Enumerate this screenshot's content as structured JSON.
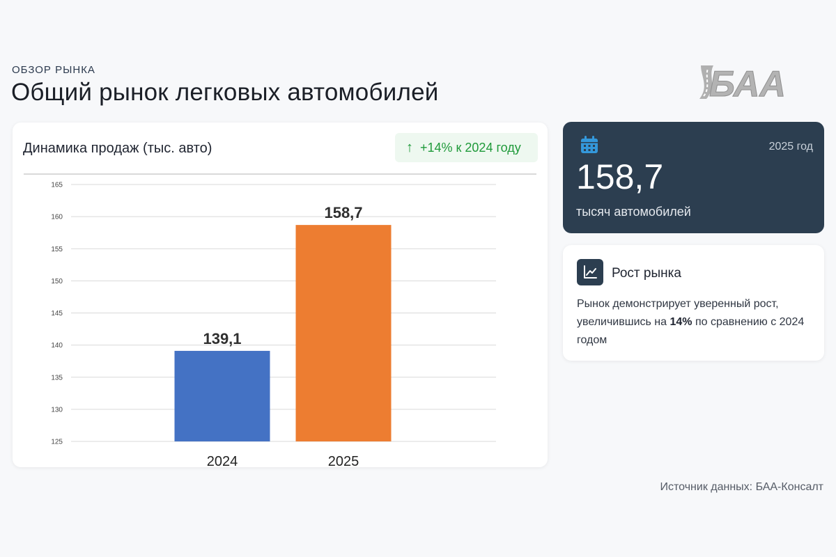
{
  "header": {
    "eyebrow": "ОБЗОР РЫНКА",
    "title": "Общий рынок легковых автомобилей"
  },
  "logo": {
    "text": "БАА",
    "color": "#b3b3b3"
  },
  "chart_card": {
    "title": "Динамика продаж (тыс. авто)",
    "badge_arrow": "↑",
    "badge_text": "+14% к 2024 году",
    "badge_color": "#1f9a3a"
  },
  "chart_data": {
    "type": "bar",
    "categories": [
      "2024",
      "2025"
    ],
    "values": [
      139.1,
      158.7
    ],
    "value_labels": [
      "139,1",
      "158,7"
    ],
    "colors": [
      "#4472c4",
      "#ed7d31"
    ],
    "title": "Динамика продаж (тыс. авто)",
    "xlabel": "",
    "ylabel": "",
    "ylim": [
      125,
      165
    ],
    "yticks": [
      125,
      130,
      135,
      140,
      145,
      150,
      155,
      160,
      165
    ],
    "grid": true,
    "legend": "none"
  },
  "kpi": {
    "year": "2025 год",
    "value": "158,7",
    "unit": "тысяч автомобилей",
    "icon": "calendar-icon",
    "icon_color": "#3498db",
    "background": "#2c3e50"
  },
  "info": {
    "icon": "chart-line-icon",
    "title": "Рост рынка",
    "text_before": "Рынок демонстрирует уверенный рост, увеличившись на ",
    "text_bold": "14%",
    "text_after": " по сравнению с 2024 годом"
  },
  "footer": {
    "source": "Источник данных: БАА-Консалт"
  }
}
